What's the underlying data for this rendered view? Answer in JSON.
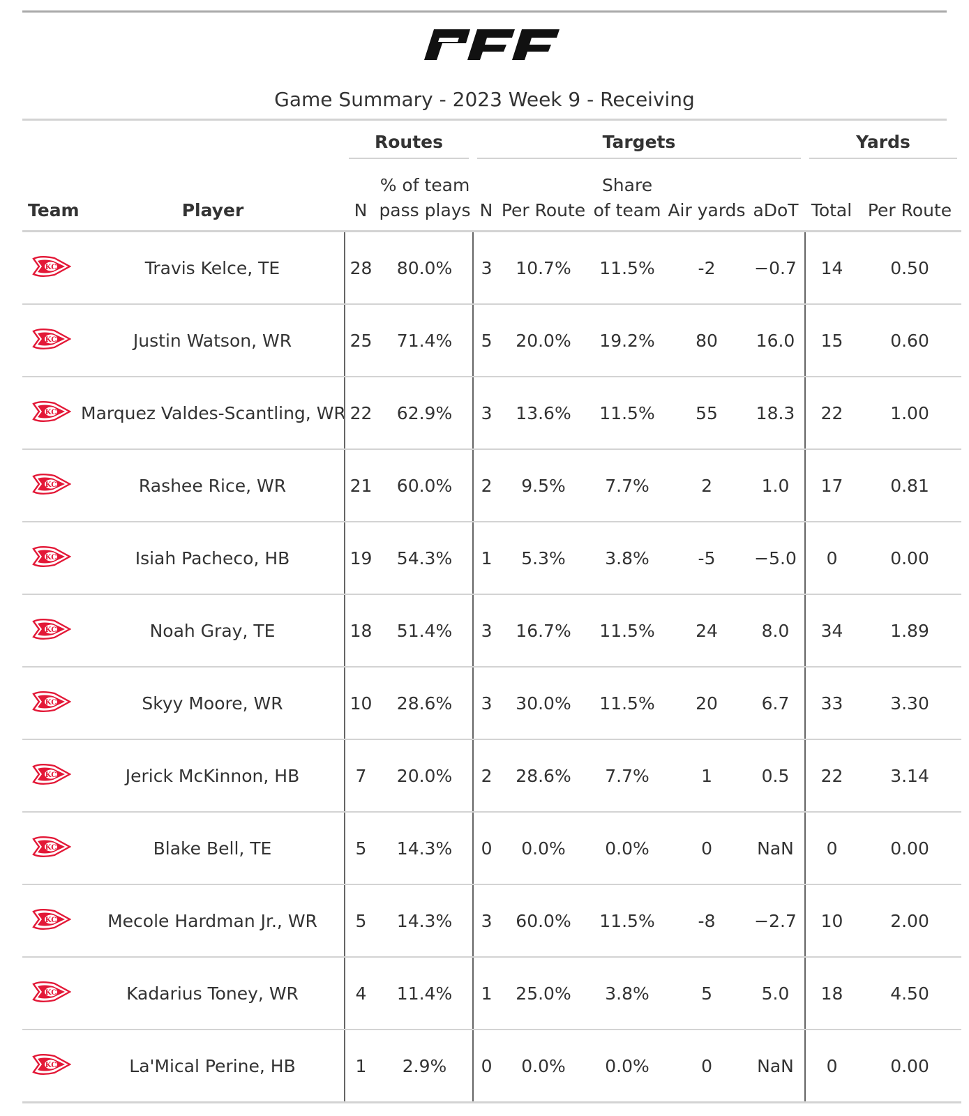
{
  "header": {
    "logo_text": "PFF",
    "title": "Game Summary - 2023 Week 9 - Receiving"
  },
  "table": {
    "spanners": {
      "routes": "Routes",
      "targets": "Targets",
      "yards": "Yards"
    },
    "columns": {
      "team": "Team",
      "player": "Player",
      "routes_n": "N",
      "routes_pct_line1": "% of team",
      "routes_pct_line2": "pass plays",
      "targets_n": "N",
      "targets_per_route": "Per Route",
      "targets_share_line1": "Share",
      "targets_share_line2": "of team",
      "air_yards": "Air yards",
      "adot": "aDoT",
      "yards_total": "Total",
      "yards_per_route": "Per Route"
    },
    "team_icon": "chiefs-arrowhead-logo",
    "team_color": "#e31837",
    "rows": [
      {
        "player": "Travis Kelce, TE",
        "routes_n": "28",
        "routes_pct": "80.0%",
        "targets_n": "3",
        "targets_per_route": "10.7%",
        "targets_share": "11.5%",
        "air_yards": "-2",
        "adot": "−0.7",
        "yards_total": "14",
        "yards_per_route": "0.50"
      },
      {
        "player": "Justin Watson, WR",
        "routes_n": "25",
        "routes_pct": "71.4%",
        "targets_n": "5",
        "targets_per_route": "20.0%",
        "targets_share": "19.2%",
        "air_yards": "80",
        "adot": "16.0",
        "yards_total": "15",
        "yards_per_route": "0.60"
      },
      {
        "player": "Marquez Valdes-Scantling, WR",
        "routes_n": "22",
        "routes_pct": "62.9%",
        "targets_n": "3",
        "targets_per_route": "13.6%",
        "targets_share": "11.5%",
        "air_yards": "55",
        "adot": "18.3",
        "yards_total": "22",
        "yards_per_route": "1.00"
      },
      {
        "player": "Rashee Rice, WR",
        "routes_n": "21",
        "routes_pct": "60.0%",
        "targets_n": "2",
        "targets_per_route": "9.5%",
        "targets_share": "7.7%",
        "air_yards": "2",
        "adot": "1.0",
        "yards_total": "17",
        "yards_per_route": "0.81"
      },
      {
        "player": "Isiah Pacheco, HB",
        "routes_n": "19",
        "routes_pct": "54.3%",
        "targets_n": "1",
        "targets_per_route": "5.3%",
        "targets_share": "3.8%",
        "air_yards": "-5",
        "adot": "−5.0",
        "yards_total": "0",
        "yards_per_route": "0.00"
      },
      {
        "player": "Noah Gray, TE",
        "routes_n": "18",
        "routes_pct": "51.4%",
        "targets_n": "3",
        "targets_per_route": "16.7%",
        "targets_share": "11.5%",
        "air_yards": "24",
        "adot": "8.0",
        "yards_total": "34",
        "yards_per_route": "1.89"
      },
      {
        "player": "Skyy Moore, WR",
        "routes_n": "10",
        "routes_pct": "28.6%",
        "targets_n": "3",
        "targets_per_route": "30.0%",
        "targets_share": "11.5%",
        "air_yards": "20",
        "adot": "6.7",
        "yards_total": "33",
        "yards_per_route": "3.30"
      },
      {
        "player": "Jerick McKinnon, HB",
        "routes_n": "7",
        "routes_pct": "20.0%",
        "targets_n": "2",
        "targets_per_route": "28.6%",
        "targets_share": "7.7%",
        "air_yards": "1",
        "adot": "0.5",
        "yards_total": "22",
        "yards_per_route": "3.14"
      },
      {
        "player": "Blake Bell, TE",
        "routes_n": "5",
        "routes_pct": "14.3%",
        "targets_n": "0",
        "targets_per_route": "0.0%",
        "targets_share": "0.0%",
        "air_yards": "0",
        "adot": "NaN",
        "yards_total": "0",
        "yards_per_route": "0.00"
      },
      {
        "player": "Mecole Hardman Jr., WR",
        "routes_n": "5",
        "routes_pct": "14.3%",
        "targets_n": "3",
        "targets_per_route": "60.0%",
        "targets_share": "11.5%",
        "air_yards": "-8",
        "adot": "−2.7",
        "yards_total": "10",
        "yards_per_route": "2.00"
      },
      {
        "player": "Kadarius Toney, WR",
        "routes_n": "4",
        "routes_pct": "11.4%",
        "targets_n": "1",
        "targets_per_route": "25.0%",
        "targets_share": "3.8%",
        "air_yards": "5",
        "adot": "5.0",
        "yards_total": "18",
        "yards_per_route": "4.50"
      },
      {
        "player": "La'Mical Perine, HB",
        "routes_n": "1",
        "routes_pct": "2.9%",
        "targets_n": "0",
        "targets_per_route": "0.0%",
        "targets_share": "0.0%",
        "air_yards": "0",
        "adot": "NaN",
        "yards_total": "0",
        "yards_per_route": "0.00"
      }
    ]
  }
}
